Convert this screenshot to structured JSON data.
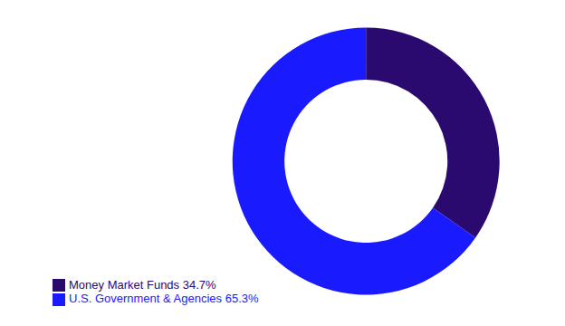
{
  "chart_data": {
    "type": "pie",
    "categories": [
      "Money Market Funds 34.7%",
      "U.S. Government & Agencies 65.3%"
    ],
    "values": [
      34.7,
      65.3
    ],
    "colors": [
      "#2a0a6e",
      "#1a1aff"
    ],
    "legend": "lower left"
  }
}
